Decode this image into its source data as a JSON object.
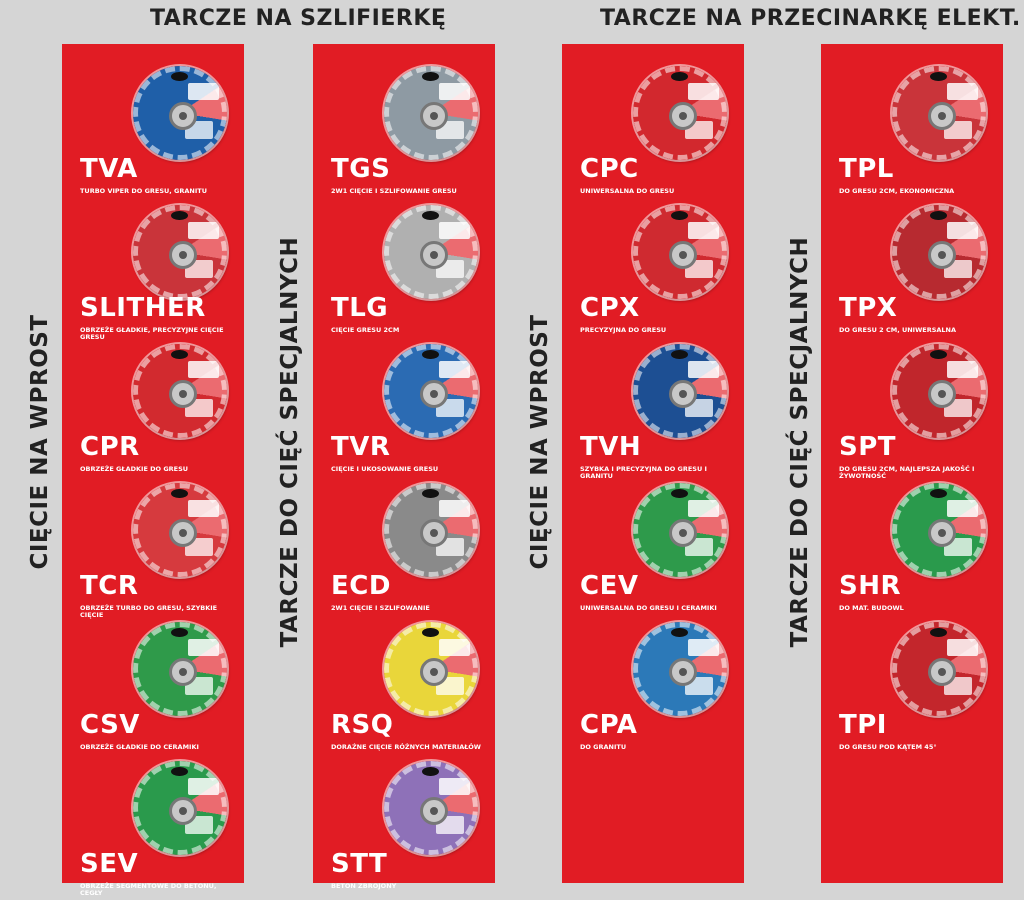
{
  "headers": {
    "left": "TARCZE NA SZLIFIERKĘ",
    "right": "TARCZE NA PRZECINARKĘ ELEKT."
  },
  "side_labels": {
    "a": "CIĘCIE NA WPROST",
    "b": "TARCZE DO CIĘĆ SPECJALNYCH",
    "c": "CIĘCIE NA WPROST",
    "d": "TARCZE DO CIĘĆ SPECJALNYCH"
  },
  "columns": [
    {
      "products": [
        {
          "code": "TVA",
          "desc": "TURBO VIPER DO GRESU, GRANITU",
          "color": "#1f5fa8"
        },
        {
          "code": "SLITHER",
          "desc": "OBRZEŻE GŁADKIE, PRECYZYJNE CIĘCIE GRESU",
          "color": "#c9343a"
        },
        {
          "code": "CPR",
          "desc": "OBRZEŻE GŁADKIE DO GRESU",
          "color": "#d22a2f"
        },
        {
          "code": "TCR",
          "desc": "OBRZEŻE TURBO DO GRESU, SZYBKIE CIĘCIE",
          "color": "#d63a3e"
        },
        {
          "code": "CSV",
          "desc": "OBRZEŻE GŁADKIE DO CERAMIKI",
          "color": "#2f9a4a"
        },
        {
          "code": "SEV",
          "desc": "OBRZEŻE SEGMENTOWE DO BETONU, CEGŁY",
          "color": "#2a9a4c"
        }
      ]
    },
    {
      "products": [
        {
          "code": "TGS",
          "desc": "2W1 CIĘCIE I SZLIFOWANIE GRESU",
          "color": "#8e9aa3"
        },
        {
          "code": "TLG",
          "desc": "CIĘCIE GRESU 2CM",
          "color": "#b0b0b0"
        },
        {
          "code": "TVR",
          "desc": "CIĘCIE I UKOSOWANIE GRESU",
          "color": "#2b6bb3"
        },
        {
          "code": "ECD",
          "desc": "2W1 CIĘCIE I SZLIFOWANIE",
          "color": "#8a8a8a"
        },
        {
          "code": "RSQ",
          "desc": "DORAŹNE CIĘCIE RÓŻNYCH MATERIAŁÓW",
          "color": "#e9d63a"
        },
        {
          "code": "STT",
          "desc": "BETON ZBROJONY",
          "color": "#8e71b8"
        }
      ]
    },
    {
      "products": [
        {
          "code": "CPC",
          "desc": "UNIWERSALNA DO GRESU",
          "color": "#d2282e"
        },
        {
          "code": "CPX",
          "desc": "PRECYZYJNA DO GRESU",
          "color": "#cf2a30"
        },
        {
          "code": "TVH",
          "desc": "SZYBKA I PRECYZYJNA DO GRESU I GRANITU",
          "color": "#1d4f93"
        },
        {
          "code": "CEV",
          "desc": "UNIWERSALNA DO GRESU I CERAMIKI",
          "color": "#2e9a4b"
        },
        {
          "code": "CPA",
          "desc": "DO GRANITU",
          "color": "#2c79b8"
        }
      ]
    },
    {
      "products": [
        {
          "code": "TPL",
          "desc": "DO GRESU 2CM, EKONOMICZNA",
          "color": "#c9343a"
        },
        {
          "code": "TPX",
          "desc": "DO GRESU 2 CM, UNIWERSALNA",
          "color": "#b72a30"
        },
        {
          "code": "SPT",
          "desc": "DO GRESU 2CM, NAJLEPSZA JAKOŚĆ I ŻYWOTNOŚĆ",
          "color": "#c0262c"
        },
        {
          "code": "SHR",
          "desc": "DO MAT. BUDOWL",
          "color": "#2a9a4c"
        },
        {
          "code": "TPI",
          "desc": "DO GRESU POD KĄTEM 45°",
          "color": "#c3262c"
        }
      ]
    }
  ]
}
